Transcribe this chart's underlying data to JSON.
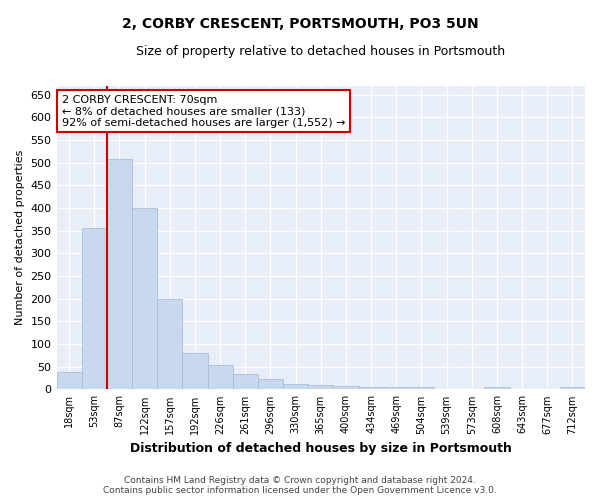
{
  "title": "2, CORBY CRESCENT, PORTSMOUTH, PO3 5UN",
  "subtitle": "Size of property relative to detached houses in Portsmouth",
  "xlabel": "Distribution of detached houses by size in Portsmouth",
  "ylabel": "Number of detached properties",
  "bar_color": "#c8d8ee",
  "bar_edge_color": "#a0b8d8",
  "plot_bg_color": "#e8eef8",
  "fig_bg_color": "#ffffff",
  "grid_color": "#ffffff",
  "categories": [
    "18sqm",
    "53sqm",
    "87sqm",
    "122sqm",
    "157sqm",
    "192sqm",
    "226sqm",
    "261sqm",
    "296sqm",
    "330sqm",
    "365sqm",
    "400sqm",
    "434sqm",
    "469sqm",
    "504sqm",
    "539sqm",
    "573sqm",
    "608sqm",
    "643sqm",
    "677sqm",
    "712sqm"
  ],
  "values": [
    38,
    357,
    507,
    401,
    200,
    80,
    53,
    35,
    22,
    12,
    9,
    8,
    5,
    5,
    5,
    2,
    2,
    6,
    2,
    2,
    6
  ],
  "ylim": [
    0,
    670
  ],
  "yticks": [
    0,
    50,
    100,
    150,
    200,
    250,
    300,
    350,
    400,
    450,
    500,
    550,
    600,
    650
  ],
  "annotation_line1": "2 CORBY CRESCENT: 70sqm",
  "annotation_line2": "← 8% of detached houses are smaller (133)",
  "annotation_line3": "92% of semi-detached houses are larger (1,552) →",
  "annotation_box_color": "#ffffff",
  "annotation_box_edge_color": "#cc0000",
  "vline_color": "#cc0000",
  "vline_x_index": 1.5,
  "footer_line1": "Contains HM Land Registry data © Crown copyright and database right 2024.",
  "footer_line2": "Contains public sector information licensed under the Open Government Licence v3.0."
}
